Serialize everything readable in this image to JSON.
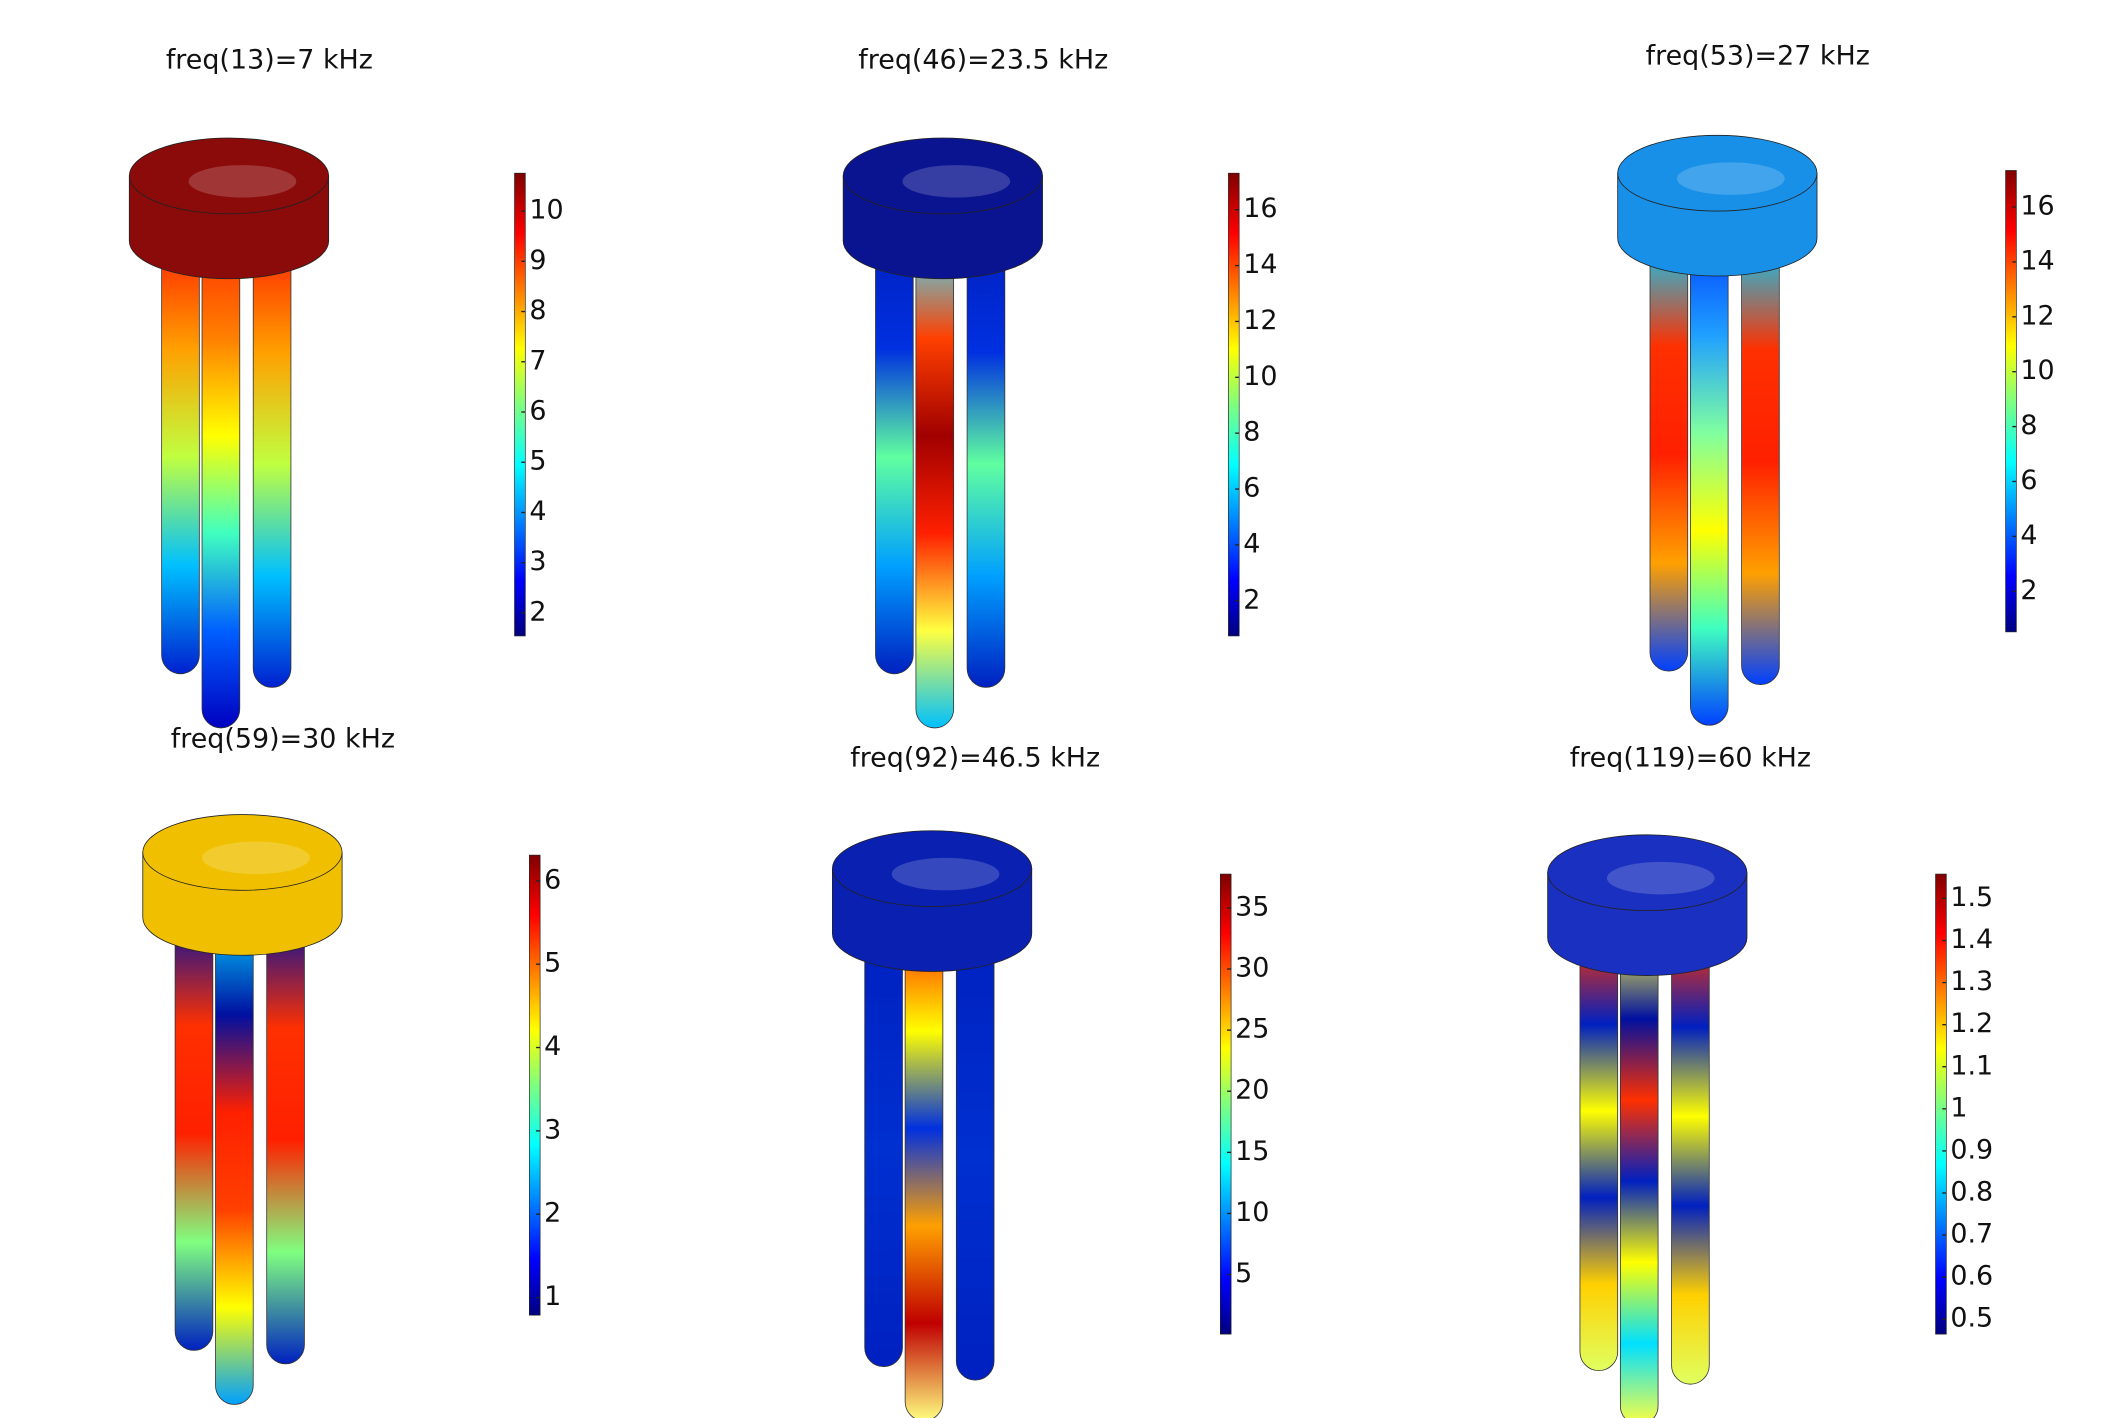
{
  "panels": [
    {
      "title": "freq(13)=7 kHz",
      "colorbar": {
        "ticks": [
          2,
          3,
          4,
          5,
          6,
          7,
          8,
          9,
          10
        ]
      }
    },
    {
      "title": "freq(46)=23.5 kHz",
      "colorbar": {
        "ticks": [
          2,
          4,
          6,
          8,
          10,
          12,
          14,
          16
        ]
      }
    },
    {
      "title": "freq(53)=27 kHz",
      "colorbar": {
        "ticks": [
          2,
          4,
          6,
          8,
          10,
          12,
          14,
          16
        ]
      }
    },
    {
      "title": "freq(59)=30 kHz",
      "colorbar": {
        "ticks": [
          1,
          2,
          3,
          4,
          5,
          6
        ]
      }
    },
    {
      "title": "freq(92)=46.5 kHz",
      "colorbar": {
        "ticks": [
          5,
          10,
          15,
          20,
          25,
          30,
          35
        ]
      }
    },
    {
      "title": "freq(119)=60 kHz",
      "colorbar": {
        "ticks": [
          0.5,
          0.6,
          0.7,
          0.8,
          0.9,
          1,
          1.1,
          1.2,
          1.3,
          1.4,
          1.5
        ]
      }
    }
  ]
}
